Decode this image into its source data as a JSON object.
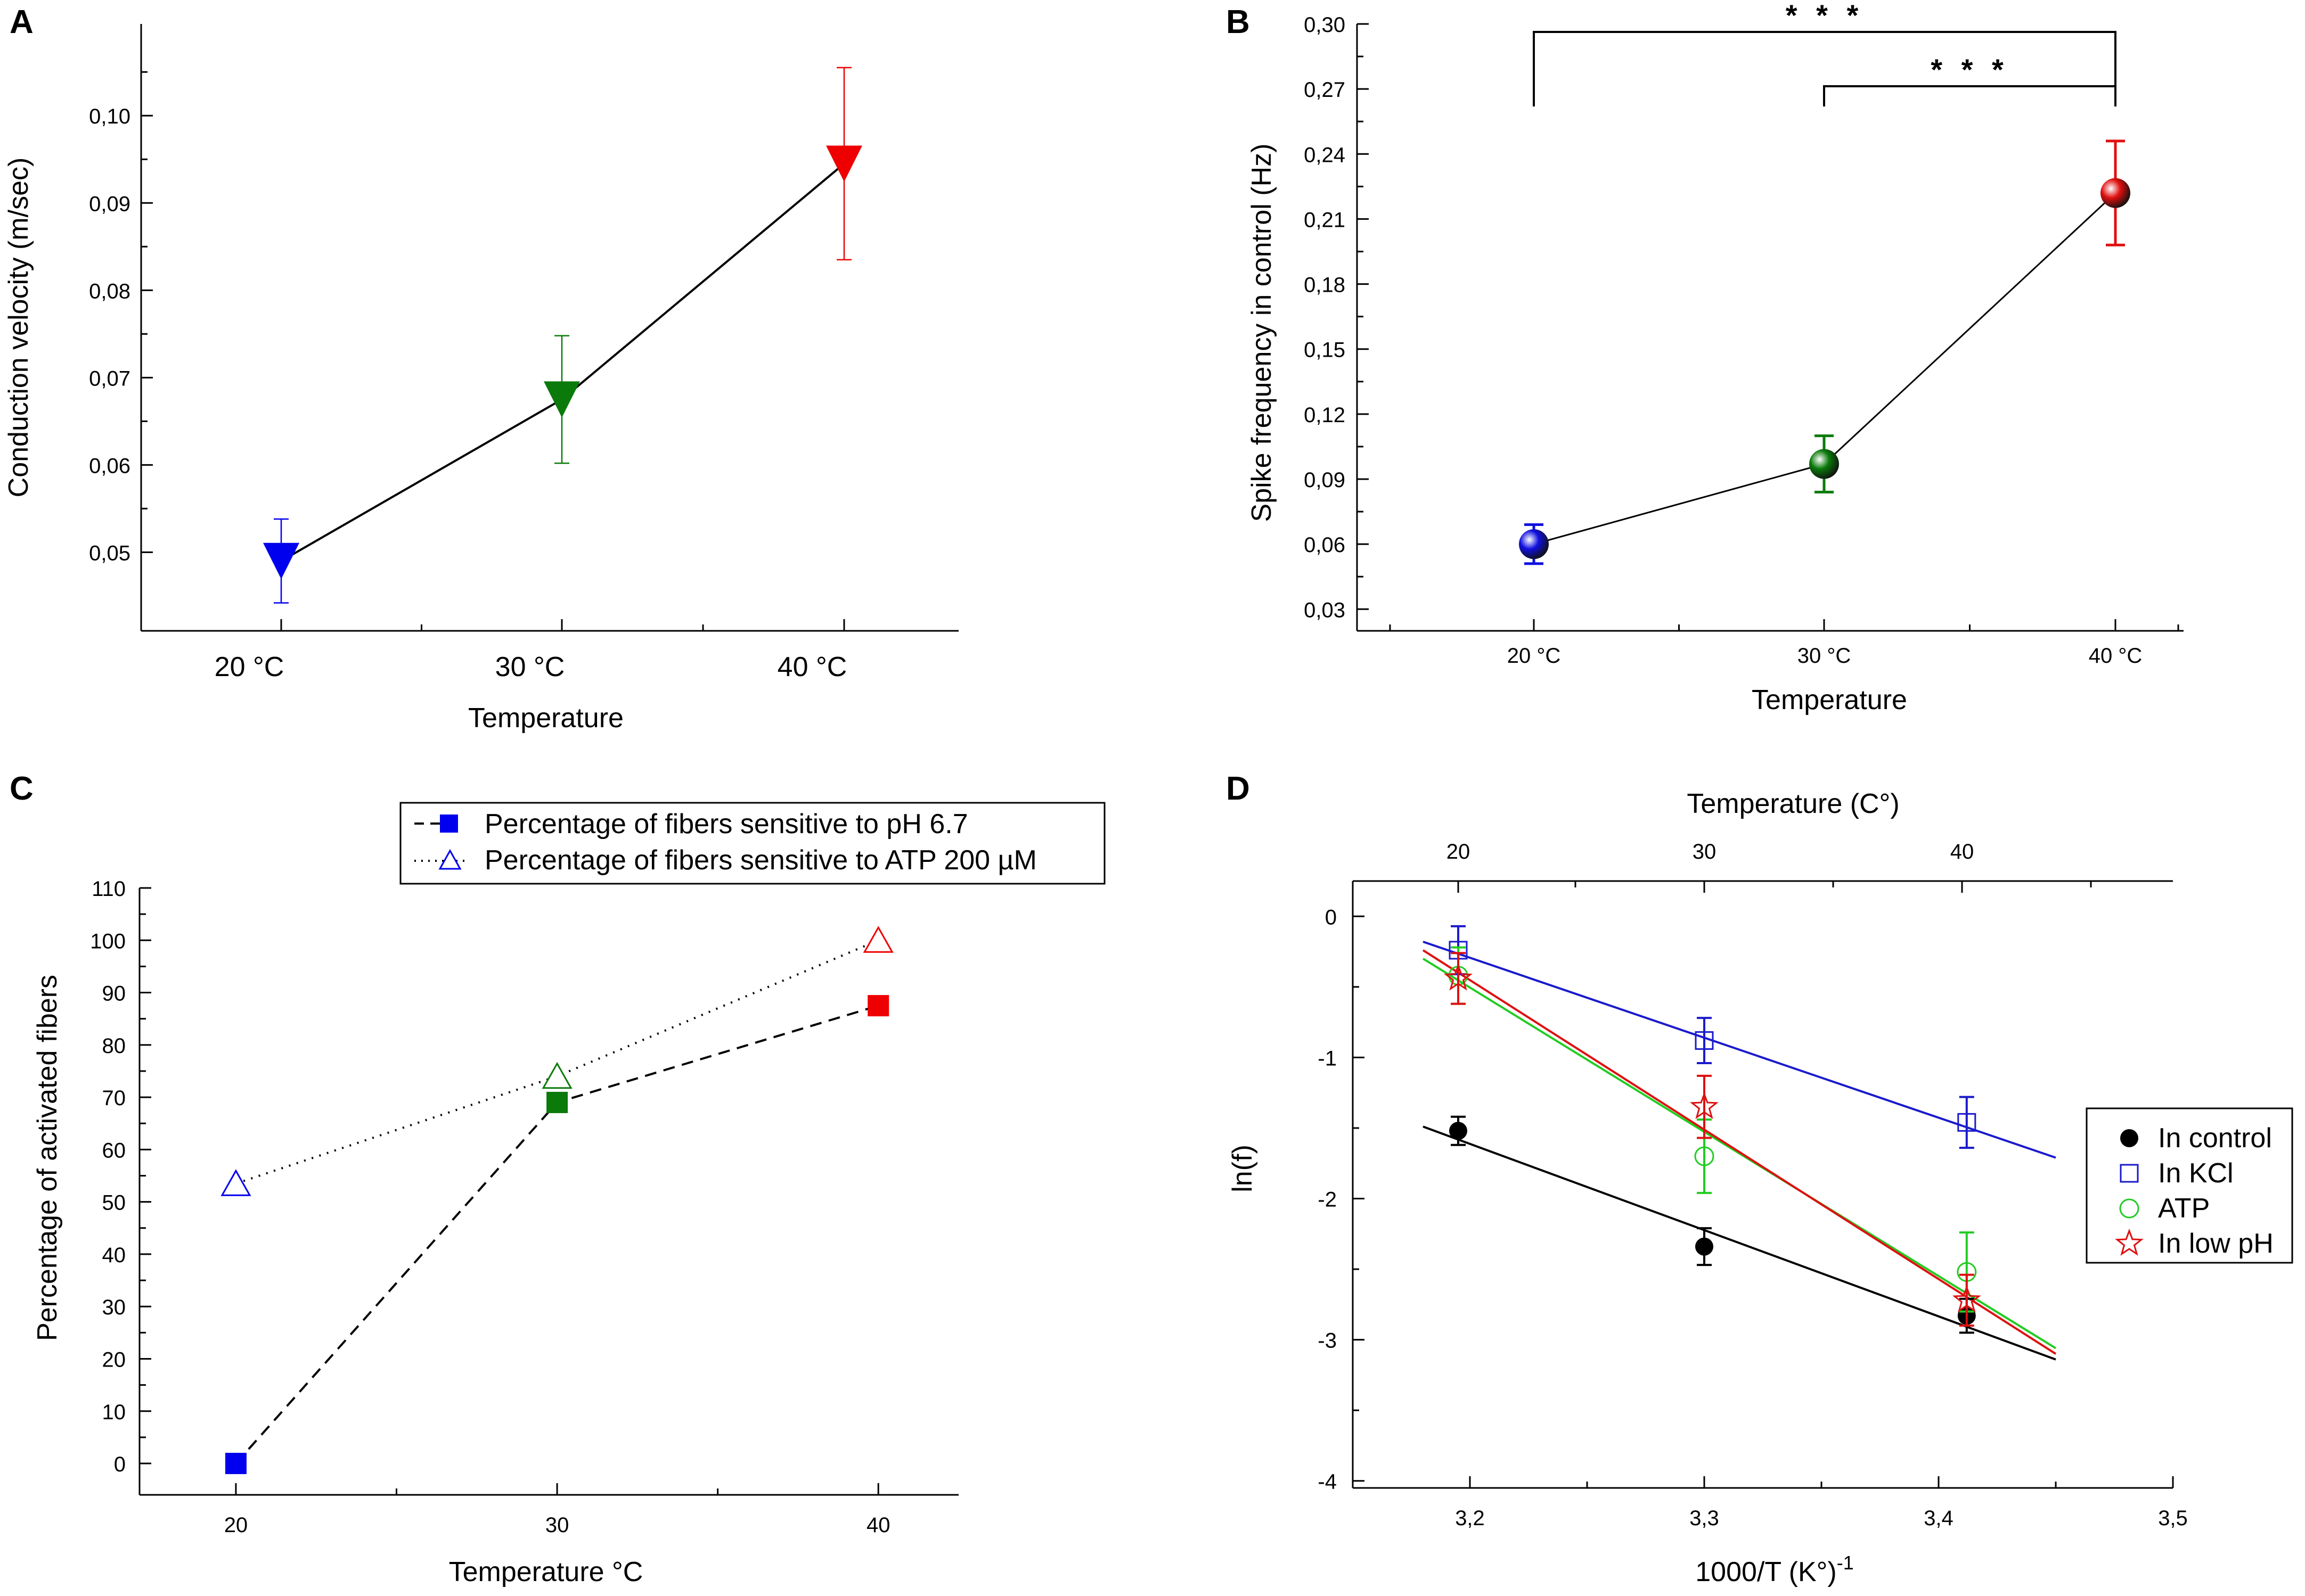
{
  "chart_data": [
    {
      "panel": "A",
      "type": "line",
      "xlabel": "Temperature",
      "ylabel": "Conduction velocity (m/sec)",
      "categories": [
        "20 °C",
        "30 °C",
        "40 °C"
      ],
      "ylim": [
        0.041,
        0.1105
      ],
      "yticks": [
        "0,05",
        "0,06",
        "0,07",
        "0,08",
        "0,09",
        "0,10"
      ],
      "series": [
        {
          "name": "Conduction velocity",
          "marker": "down-triangle",
          "values": [
            0.049,
            0.0675,
            0.0945
          ],
          "errors": [
            0.0048,
            0.0073,
            0.011
          ],
          "colors": [
            "#0000ee",
            "#0a7a0a",
            "#ee0000"
          ]
        }
      ]
    },
    {
      "panel": "B",
      "type": "line",
      "xlabel": "Temperature",
      "ylabel": "Spike frequency in control (Hz)",
      "categories": [
        "20 °C",
        "30 °C",
        "40 °C"
      ],
      "ylim": [
        0.02,
        0.3
      ],
      "yticks": [
        "0,03",
        "0,06",
        "0,09",
        "0,12",
        "0,15",
        "0,18",
        "0,21",
        "0,24",
        "0,27",
        "0,30"
      ],
      "series": [
        {
          "name": "Spike frequency",
          "marker": "sphere",
          "values": [
            0.06,
            0.097,
            0.222
          ],
          "errors": [
            0.009,
            0.013,
            0.024
          ],
          "colors": [
            "#1010e0",
            "#0a7a0a",
            "#e01010"
          ]
        }
      ],
      "annotations": [
        {
          "text": "* * *",
          "from": "20 °C",
          "to": "40 °C"
        },
        {
          "text": "* * *",
          "from": "30 °C",
          "to": "40 °C"
        }
      ]
    },
    {
      "panel": "C",
      "type": "line",
      "xlabel": "Temperature °C",
      "ylabel": "Percentage of activated fibers",
      "x": [
        20,
        30,
        40
      ],
      "xticks": [
        "20",
        "30",
        "40"
      ],
      "xlim": [
        17,
        42.5
      ],
      "ylim": [
        -6,
        110
      ],
      "yticks": [
        "0",
        "10",
        "20",
        "30",
        "40",
        "50",
        "60",
        "70",
        "80",
        "90",
        "100",
        "110"
      ],
      "series": [
        {
          "name": "Percentage of fibers sensitive to pH 6.7",
          "marker": "filled-square",
          "line": "dashed",
          "values": [
            0,
            69,
            87.5
          ],
          "colors": [
            "#0000ee",
            "#0a7a0a",
            "#ee0000"
          ]
        },
        {
          "name": "Percentage of fibers sensitive to ATP 200 µM",
          "marker": "open-triangle",
          "line": "dotted",
          "values": [
            53.5,
            74,
            100
          ],
          "colors": [
            "#0000ee",
            "#0a7a0a",
            "#ee0000"
          ]
        }
      ],
      "legend": {
        "position": "top-right",
        "entries": [
          "Percentage of fibers sensitive to pH 6.7",
          "Percentage of fibers sensitive to ATP 200 µM"
        ]
      }
    },
    {
      "panel": "D",
      "type": "scatter",
      "xlabel": "1000/T (K°)",
      "xlabel_sup": "-1",
      "ylabel": "ln(f)",
      "top_xlabel": "Temperature (C°)",
      "top_xticks": [
        "20",
        "30",
        "40"
      ],
      "top_tick_x": [
        3.195,
        3.3,
        3.41
      ],
      "x": [
        3.195,
        3.3,
        3.412
      ],
      "xlim": [
        3.15,
        3.5
      ],
      "ylim": [
        -4.05,
        0.25
      ],
      "xticks": [
        "3,2",
        "3,3",
        "3,4",
        "3,5"
      ],
      "yticks": [
        "0",
        "-1",
        "-2",
        "-3",
        "-4"
      ],
      "series": [
        {
          "name": "In control",
          "marker": "filled-circle",
          "color": "#000000",
          "values": [
            -1.52,
            -2.34,
            -2.83
          ],
          "errors": [
            0.1,
            0.13,
            0.12
          ],
          "fit": {
            "x": [
              3.18,
              3.45
            ],
            "y": [
              -1.49,
              -3.14
            ]
          }
        },
        {
          "name": "In KCl",
          "marker": "open-square",
          "color": "#1a1acc",
          "values": [
            -0.24,
            -0.88,
            -1.46
          ],
          "errors": [
            0.17,
            0.16,
            0.18
          ],
          "fit": {
            "x": [
              3.18,
              3.45
            ],
            "y": [
              -0.18,
              -1.71
            ]
          }
        },
        {
          "name": "ATP",
          "marker": "open-circle",
          "color": "#22cc22",
          "values": [
            -0.42,
            -1.7,
            -2.52
          ],
          "errors": [
            0.2,
            0.26,
            0.28
          ],
          "fit": {
            "x": [
              3.18,
              3.45
            ],
            "y": [
              -0.3,
              -3.06
            ]
          }
        },
        {
          "name": "In low pH",
          "marker": "open-star",
          "color": "#dd1111",
          "values": [
            -0.44,
            -1.35,
            -2.72
          ],
          "errors": [
            0.18,
            0.22,
            0.18
          ],
          "fit": {
            "x": [
              3.18,
              3.45
            ],
            "y": [
              -0.24,
              -3.1
            ]
          }
        }
      ],
      "legend": {
        "position": "right",
        "entries": [
          "In control",
          "In KCl",
          "ATP",
          "In low pH"
        ]
      }
    }
  ]
}
